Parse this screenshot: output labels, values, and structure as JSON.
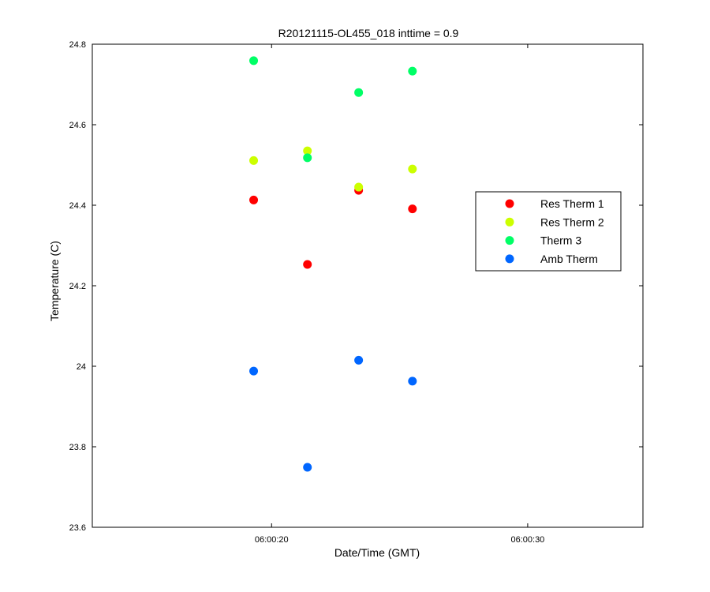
{
  "chart_data": {
    "type": "scatter",
    "title": "R20121115-OL455_018 inttime = 0.9",
    "xlabel": "Date/Time (GMT)",
    "ylabel": "Temperature (C)",
    "x_tick_labels": [
      "06:00:20",
      "06:00:30"
    ],
    "x_tick_values": [
      "06:00:20",
      "06:00:30"
    ],
    "xlim": [
      "06:00:13",
      "06:00:34.5"
    ],
    "ylim": [
      23.6,
      24.8
    ],
    "y_ticks": [
      23.6,
      23.8,
      24,
      24.2,
      24.4,
      24.6,
      24.8
    ],
    "y_tick_labels": [
      "23.6",
      "23.8",
      "24",
      "24.2",
      "24.4",
      "24.6",
      "24.8"
    ],
    "x": [
      "06:00:19.3",
      "06:00:21.4",
      "06:00:23.4",
      "06:00:25.5"
    ],
    "series": [
      {
        "name": "Res Therm 1",
        "color": "#ff0000",
        "values": [
          24.413,
          24.253,
          24.437,
          24.391
        ]
      },
      {
        "name": "Res Therm 2",
        "color": "#ccff00",
        "values": [
          24.511,
          24.535,
          24.445,
          24.49
        ]
      },
      {
        "name": "Therm 3",
        "color": "#00ff66",
        "values": [
          24.759,
          24.518,
          24.68,
          24.733
        ]
      },
      {
        "name": "Amb Therm",
        "color": "#0066ff",
        "values": [
          23.988,
          23.749,
          24.015,
          23.963
        ]
      }
    ],
    "grid": false,
    "legend_position": "right"
  }
}
